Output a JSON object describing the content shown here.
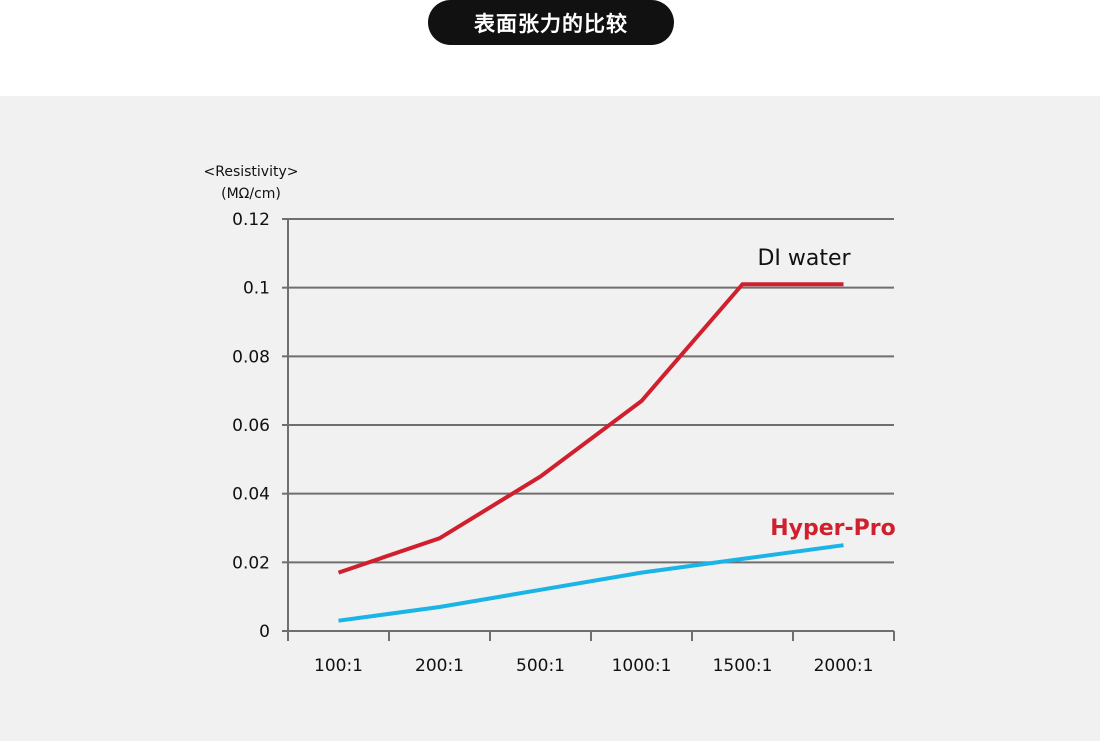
{
  "header": {
    "title": "表面张力的比较"
  },
  "chart_data": {
    "type": "line",
    "title": "",
    "ylabel_line1": "<Resistivity>",
    "ylabel_line2": "(MΩ/cm)",
    "xlabel": "",
    "categories": [
      "100:1",
      "200:1",
      "500:1",
      "1000:1",
      "1500:1",
      "2000:1"
    ],
    "y_ticks": [
      "0",
      "0.02",
      "0.04",
      "0.06",
      "0.08",
      "0.1",
      "0.12"
    ],
    "ylim": [
      0,
      0.12
    ],
    "grid": true,
    "series": [
      {
        "name": "DI water",
        "color": "#d0202e",
        "values": [
          0.017,
          0.027,
          0.045,
          0.067,
          0.101,
          0.101
        ]
      },
      {
        "name": "Hyper-Pro",
        "color": "#1bb4e6",
        "values": [
          0.003,
          0.007,
          0.012,
          0.017,
          0.021,
          0.025
        ]
      }
    ]
  }
}
